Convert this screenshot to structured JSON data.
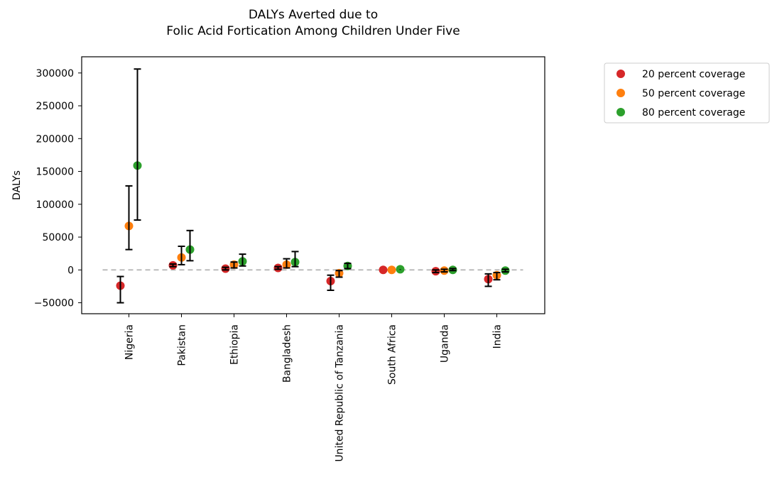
{
  "chart_data": {
    "type": "scatter",
    "title_line1": "DALYs Averted due to",
    "title_line2": "Folic Acid Fortication Among Children Under Five",
    "xlabel": "",
    "ylabel": "DALYs",
    "ylim": [
      -68000,
      325000
    ],
    "yticks": [
      -50000,
      0,
      50000,
      100000,
      150000,
      200000,
      250000,
      300000
    ],
    "ytick_labels": [
      "−50000",
      "0",
      "50000",
      "100000",
      "150000",
      "200000",
      "250000",
      "300000"
    ],
    "categories": [
      "Nigeria",
      "Pakistan",
      "Ethiopia",
      "Bangladesh",
      "United Republic of Tanzania",
      "South Africa",
      "Uganda",
      "India"
    ],
    "reference_line": {
      "y": 0,
      "style": "dashed",
      "color": "#bbbbbb"
    },
    "legend_placement": "outside top-right",
    "grid": false,
    "series": [
      {
        "name": "20 percent coverage",
        "color": "#d62728",
        "values": [
          -24000,
          7000,
          2000,
          3000,
          -17000,
          0,
          -2000,
          -14000
        ],
        "err_low": [
          -50000,
          5000,
          0,
          1000,
          -31000,
          0,
          -4000,
          -25000
        ],
        "err_high": [
          -10000,
          9000,
          4000,
          5000,
          -8000,
          0,
          0,
          -6000
        ]
      },
      {
        "name": "50 percent coverage",
        "color": "#ff7f0e",
        "values": [
          67000,
          19000,
          8000,
          8000,
          -5000,
          0,
          -1000,
          -8000
        ],
        "err_low": [
          31000,
          8000,
          3000,
          3000,
          -11000,
          0,
          -3000,
          -15000
        ],
        "err_high": [
          128000,
          36000,
          12000,
          17000,
          -1000,
          0,
          1000,
          -4000
        ]
      },
      {
        "name": "80 percent coverage",
        "color": "#2ca02c",
        "values": [
          159000,
          31000,
          13000,
          12000,
          6000,
          1000,
          0,
          -1000
        ],
        "err_low": [
          76000,
          14000,
          6000,
          5000,
          2000,
          0,
          -1000,
          -3000
        ],
        "err_high": [
          306000,
          60000,
          24000,
          28000,
          10000,
          1000,
          2000,
          1000
        ]
      }
    ]
  }
}
